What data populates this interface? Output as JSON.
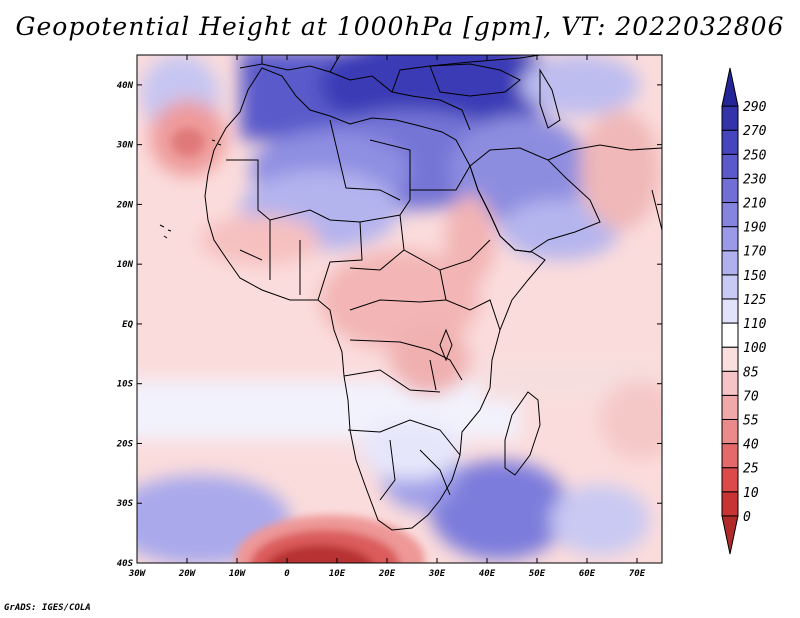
{
  "title": "Geopotential Height at 1000hPa [gpm], VT: 2022032806",
  "credit": "GrADS: IGES/COLA",
  "map": {
    "lon_labels": [
      "30W",
      "20W",
      "10W",
      "0",
      "10E",
      "20E",
      "30E",
      "40E",
      "50E",
      "60E",
      "70E"
    ],
    "lat_labels": [
      "40N",
      "30N",
      "20N",
      "10N",
      "EQ",
      "10S",
      "20S",
      "30S",
      "40S"
    ],
    "lon_range": [
      -30,
      75
    ],
    "lat_range": [
      -40,
      45
    ]
  },
  "colorbar": {
    "labels": [
      "0",
      "10",
      "25",
      "40",
      "55",
      "70",
      "85",
      "100",
      "110",
      "125",
      "150",
      "170",
      "190",
      "210",
      "230",
      "250",
      "270",
      "290"
    ],
    "colors": [
      "#b02a2a",
      "#c83434",
      "#dc4a4a",
      "#e46a6a",
      "#ea8a8a",
      "#f0a8a8",
      "#f6c4c4",
      "#fbdfdf",
      "#ffffff",
      "#e2e2fb",
      "#c9c9f5",
      "#b0b0ef",
      "#9a9ae8",
      "#8585e0",
      "#6f6fd6",
      "#5a5acb",
      "#4545be",
      "#3333aa",
      "#25259a"
    ]
  }
}
